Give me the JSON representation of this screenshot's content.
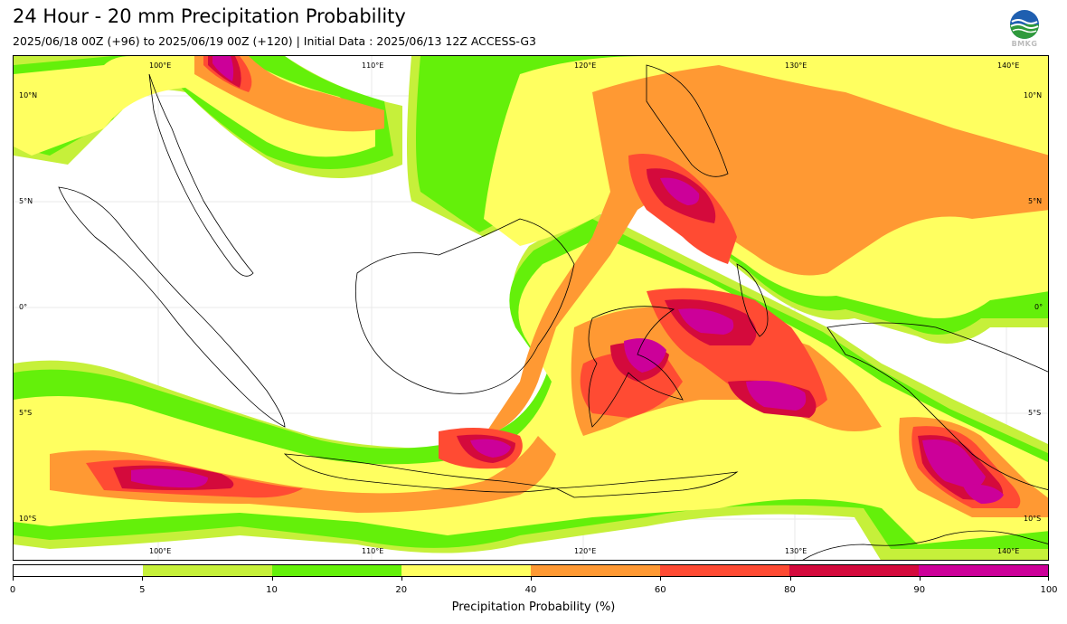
{
  "header": {
    "title": "24 Hour - 20 mm Precipitation Probability",
    "subtitle": "2025/06/18 00Z (+96) to 2025/06/19 00Z (+120) | Initial Data : 2025/06/13 12Z ACCESS-G3",
    "logo_text": "BMKG"
  },
  "map": {
    "lon_labels": [
      "100°E",
      "110°E",
      "120°E",
      "130°E",
      "140°E"
    ],
    "lat_labels": [
      "10°N",
      "5°N",
      "0°",
      "5°S",
      "10°S"
    ],
    "colors": {
      "p5": "#c6f03a",
      "p10": "#64f00a",
      "p20": "#ffff60",
      "p40": "#ff9933",
      "p60": "#ff4b33",
      "p80": "#d40a3c",
      "p90": "#cc0099",
      "coast": "#000000",
      "grid": "#dddddd"
    }
  },
  "colorbar": {
    "colors": [
      "#ffffff",
      "#c6f03a",
      "#64f00a",
      "#ffff60",
      "#ff9933",
      "#ff4b33",
      "#d40a3c",
      "#cc0099"
    ],
    "ticks": [
      "0",
      "5",
      "10",
      "20",
      "40",
      "60",
      "80",
      "90",
      "100"
    ],
    "label": "Precipitation Probability (%)"
  }
}
